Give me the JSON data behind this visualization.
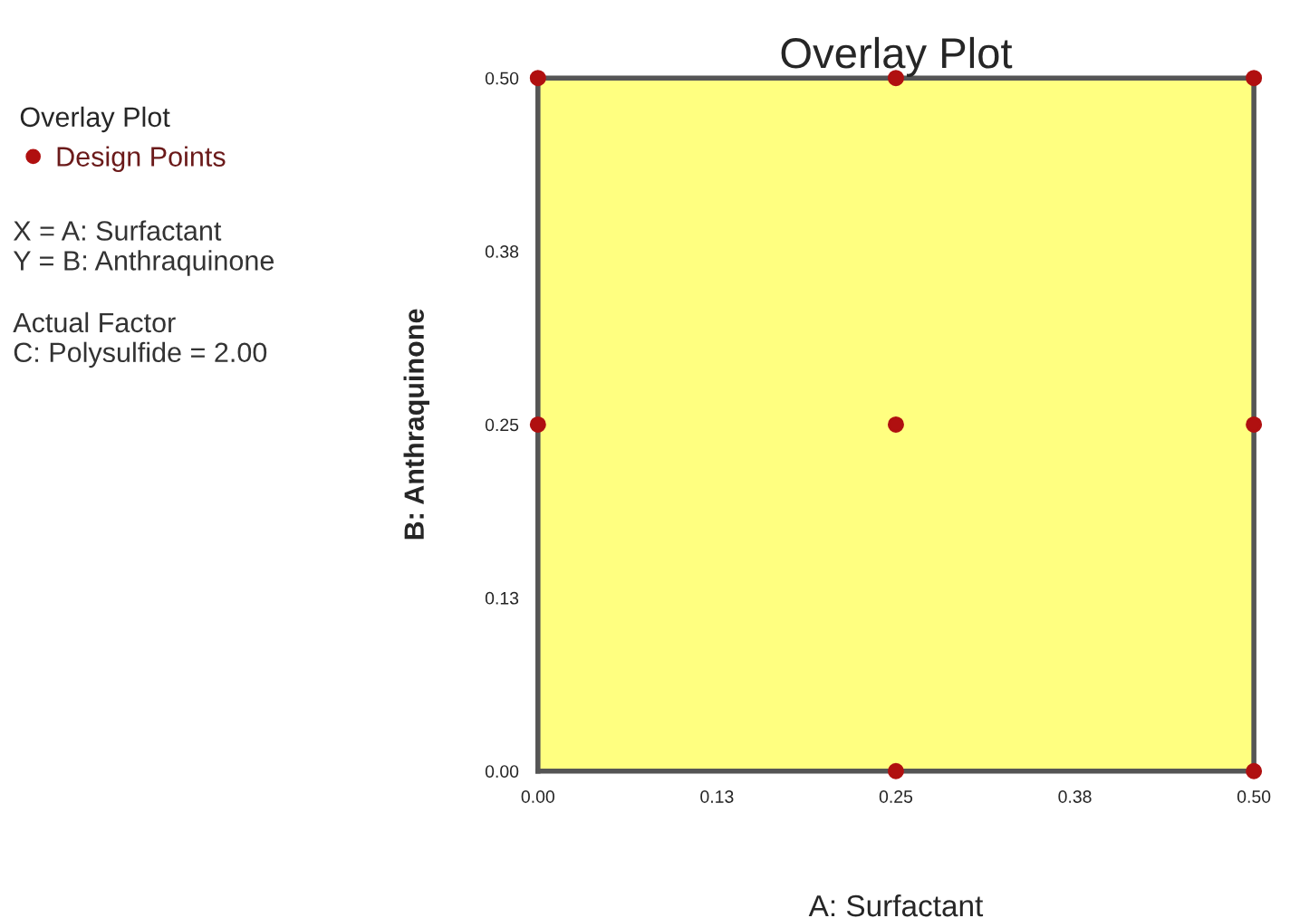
{
  "chart_data": {
    "type": "scatter",
    "title": "Overlay Plot",
    "xlabel": "A: Surfactant",
    "ylabel": "B: Anthraquinone",
    "legend_title": "Overlay Plot",
    "legend": "left",
    "marker": "circle",
    "grid": false,
    "x": [
      0.0,
      0.25,
      0.5,
      0.0,
      0.25,
      0.5,
      0.25,
      0.5
    ],
    "series": [
      {
        "name": "Design Points",
        "color": "#b01010",
        "values": [
          0.5,
          0.5,
          0.5,
          0.25,
          0.25,
          0.25,
          0.0,
          0.0
        ]
      }
    ],
    "xlim": [
      0,
      0.5
    ],
    "ylim": [
      0,
      0.5
    ],
    "xticks": [
      {
        "value": 0,
        "label": "0.00"
      },
      {
        "value": 0.125,
        "label": "0.13"
      },
      {
        "value": 0.25,
        "label": "0.25"
      },
      {
        "value": 0.375,
        "label": "0.38"
      },
      {
        "value": 0.5,
        "label": "0.50"
      }
    ],
    "yticks": [
      {
        "value": 0,
        "label": "0.00"
      },
      {
        "value": 0.125,
        "label": "0.13"
      },
      {
        "value": 0.25,
        "label": "0.25"
      },
      {
        "value": 0.375,
        "label": "0.38"
      },
      {
        "value": 0.5,
        "label": "0.50"
      }
    ],
    "annotations": [
      "X = A: Surfactant\nY = B: Anthraquinone",
      "Actual Factor\nC: Polysulfide = 2.00"
    ]
  }
}
